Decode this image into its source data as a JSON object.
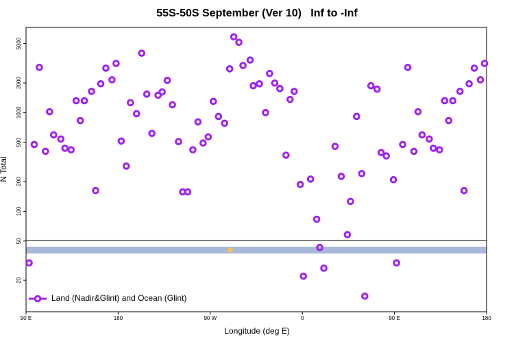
{
  "chart_data": {
    "type": "scatter",
    "title": "55S-50S September (Ver 10)   Inf to -Inf",
    "x_label": "Longitude (deg E)",
    "y_label": "N Total",
    "log_y": true,
    "legend": "bottom-left",
    "xlim": [
      -270,
      180
    ],
    "ylim": [
      9.6,
      7300
    ],
    "xticks": [
      {
        "value": -270,
        "label": "90 E"
      },
      {
        "value": -180,
        "label": "180"
      },
      {
        "value": -90,
        "label": "90 W"
      },
      0,
      {
        "value": 90,
        "label": "90 E"
      },
      180
    ],
    "yticks": [
      20,
      50,
      100,
      200,
      500,
      1000,
      2000,
      5000
    ],
    "series": [
      {
        "name": "Land (Nadir&Glint) and Ocean (Glint)",
        "color": "#a020f0",
        "x": [
          -267,
          -262,
          -257,
          -251,
          -247,
          -243,
          -236,
          -232,
          -226,
          -221,
          -217,
          -213,
          -206,
          -202,
          -197,
          -192,
          -186,
          -182,
          -177,
          -172,
          -168,
          -162,
          -157,
          -152,
          -147,
          -141,
          -137,
          -132,
          -127,
          -121,
          -117,
          -112,
          -107,
          -102,
          -97,
          -92,
          -87,
          -82,
          -76,
          -71,
          -67,
          -62,
          -58,
          -51,
          -48,
          -42,
          -36,
          -32,
          -27,
          -22,
          -16,
          -12,
          -8,
          -2,
          1,
          8,
          14,
          17,
          21,
          32,
          38,
          44,
          47,
          53,
          58,
          61,
          67,
          73,
          77,
          82,
          89,
          92,
          98,
          103,
          109,
          113,
          117,
          124,
          128,
          134,
          139,
          143,
          147,
          154,
          158,
          163,
          168,
          174,
          178
        ],
        "values": [
          30,
          475,
          2870,
          405,
          1020,
          595,
          540,
          435,
          420,
          1320,
          830,
          1320,
          1640,
          162,
          1960,
          2820,
          2150,
          3150,
          515,
          287,
          1260,
          975,
          4000,
          1540,
          615,
          1500,
          1620,
          2120,
          1200,
          508,
          157,
          157,
          420,
          805,
          492,
          568,
          1300,
          914,
          780,
          2780,
          5860,
          5160,
          3000,
          3410,
          1870,
          1960,
          1000,
          2490,
          1990,
          1750,
          370,
          1360,
          1640,
          187,
          22,
          212,
          83,
          43,
          26.5,
          455,
          226,
          58,
          126,
          914,
          241,
          13.8,
          1870,
          1730,
          394,
          364,
          209,
          30,
          475,
          2870,
          405,
          1020,
          595,
          540,
          435,
          420,
          1320,
          830,
          1320,
          1640,
          162,
          1960,
          2820,
          2150,
          3150
        ]
      }
    ]
  }
}
